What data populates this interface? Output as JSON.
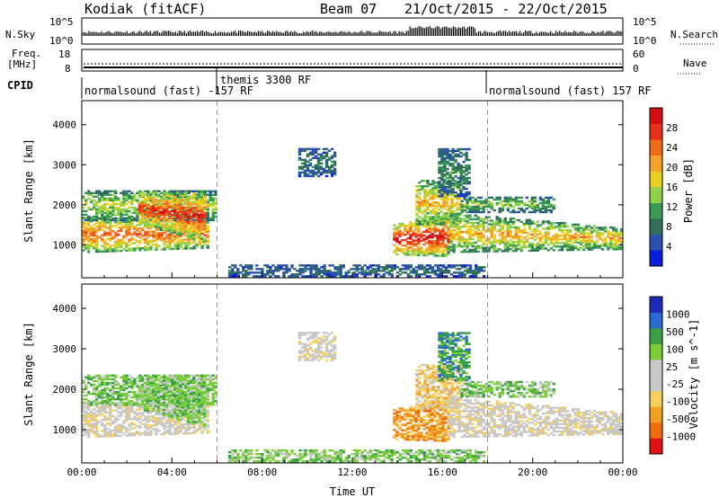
{
  "header": {
    "station": "Kodiak (fitACF)",
    "beam": "Beam 07",
    "dates": "21/Oct/2015 - 22/Oct/2015"
  },
  "strips": {
    "nsky_label": "N.Sky",
    "nsky_ticks": [
      "10^5",
      "10^0"
    ],
    "nsky_right_ticks": [
      "10^5",
      "10^0"
    ],
    "nsearch_label": "N.Search",
    "freq_label_1": "Freq.",
    "freq_label_2": "[MHz]",
    "freq_ticks": [
      "18",
      "8"
    ],
    "nave_label": "Nave",
    "nave_ticks": [
      "60",
      "0"
    ],
    "cpid_label": "CPID",
    "cpid_modes": [
      {
        "label": "normalsound (fast) -157 RF"
      },
      {
        "label": "themis 3300 RF"
      },
      {
        "label": "normalsound (fast) 157 RF"
      }
    ]
  },
  "colors": {
    "power": [
      "#0a1bdc",
      "#2b4fb0",
      "#2f6e5a",
      "#3a9a55",
      "#8fd24a",
      "#e8d020",
      "#f4a12a",
      "#f06c1a",
      "#e8301a",
      "#d40f0f"
    ],
    "velocity": [
      "#e01010",
      "#f06a10",
      "#f2a020",
      "#f5cf60",
      "#c8c8c8",
      "#c8c8c8",
      "#7acd3a",
      "#3aa048",
      "#2a6ad0",
      "#1d2ab8"
    ]
  },
  "chart_data": [
    {
      "type": "heatmap",
      "title": "",
      "ylabel": "Slant Range [km]",
      "xlabel": "",
      "colorbar_label": "Power [dB]",
      "colorbar_ticks": [
        "28",
        "24",
        "20",
        "16",
        "12",
        "8",
        "4"
      ],
      "colorbar_range": [
        0,
        30
      ],
      "ylim": [
        180,
        4600
      ],
      "y_ticks": [
        "4000",
        "3000",
        "2000",
        "1000"
      ],
      "x_ticks": [
        "00:00",
        "04:00",
        "08:00",
        "12:00",
        "16:00",
        "20:00",
        "00:00"
      ],
      "xlim_hours": [
        0,
        24
      ],
      "mode_change_hours": [
        6.0,
        18.0
      ]
    },
    {
      "type": "heatmap",
      "title": "",
      "ylabel": "Slant Range [km]",
      "xlabel": "Time UT",
      "colorbar_label": "Velocity [m s^-1]",
      "colorbar_ticks": [
        "1000",
        "500",
        "100",
        "25",
        "-25",
        "-100",
        "-500",
        "-1000"
      ],
      "colorbar_range": [
        -1200,
        1200
      ],
      "ylim": [
        180,
        4600
      ],
      "y_ticks": [
        "4000",
        "3000",
        "2000",
        "1000"
      ],
      "x_ticks": [
        "00:00",
        "04:00",
        "08:00",
        "12:00",
        "16:00",
        "20:00",
        "00:00"
      ],
      "xlim_hours": [
        0,
        24
      ],
      "mode_change_hours": [
        6.0,
        18.0
      ]
    }
  ]
}
